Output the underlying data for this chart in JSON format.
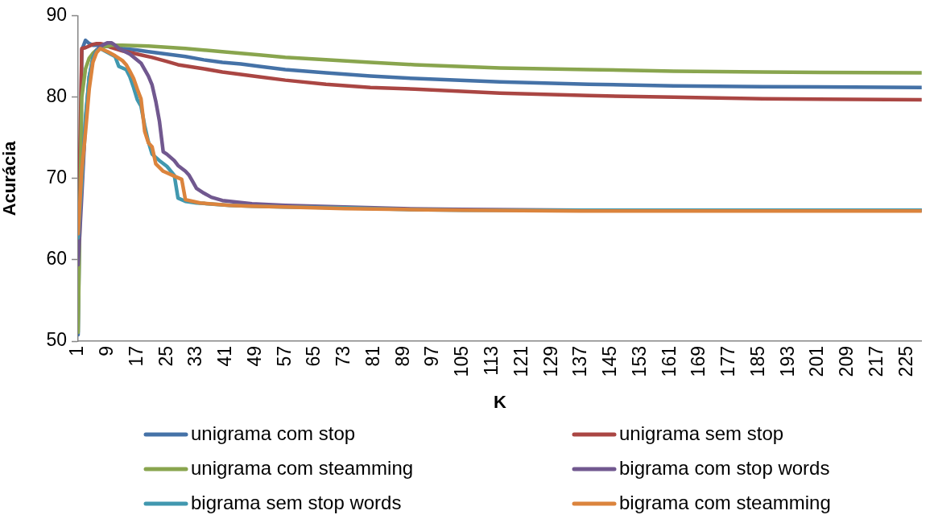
{
  "chart_data": {
    "type": "line",
    "xlabel": "K",
    "ylabel": "Acurácia",
    "xlim": [
      1,
      229
    ],
    "xticks": [
      1,
      9,
      17,
      25,
      33,
      41,
      49,
      57,
      65,
      73,
      81,
      89,
      97,
      105,
      113,
      121,
      129,
      137,
      145,
      153,
      161,
      169,
      177,
      185,
      193,
      201,
      209,
      217,
      225
    ],
    "ylim": [
      50,
      90
    ],
    "yticks": [
      50,
      60,
      70,
      80,
      90
    ],
    "grid": false,
    "legend": "bottom",
    "marker": "none",
    "series": [
      {
        "name": "unigrama com stop",
        "color": "#4572a7",
        "x": [
          1,
          2,
          3,
          4,
          5,
          6,
          8,
          10,
          13,
          17,
          20,
          25,
          30,
          35,
          40,
          45,
          50,
          57,
          68,
          80,
          92,
          115,
          139,
          162,
          186,
          229
        ],
        "values": [
          50.8,
          85.8,
          87.0,
          86.6,
          86.4,
          86.4,
          86.3,
          86.2,
          86.0,
          85.8,
          85.6,
          85.3,
          85.0,
          84.6,
          84.3,
          84.1,
          83.8,
          83.4,
          83.0,
          82.6,
          82.3,
          81.9,
          81.6,
          81.4,
          81.3,
          81.2
        ]
      },
      {
        "name": "unigrama sem stop",
        "color": "#aa4643",
        "x": [
          1,
          2,
          3,
          4,
          5,
          6,
          7,
          8,
          9,
          10,
          13,
          17,
          21,
          25,
          28,
          35,
          40,
          45,
          50,
          57,
          68,
          80,
          92,
          115,
          139,
          162,
          186,
          229
        ],
        "values": [
          61.0,
          86.0,
          86.1,
          86.3,
          86.5,
          86.6,
          86.6,
          86.5,
          86.3,
          86.1,
          85.7,
          85.3,
          84.9,
          84.4,
          84.0,
          83.5,
          83.1,
          82.8,
          82.5,
          82.1,
          81.6,
          81.2,
          81.0,
          80.5,
          80.2,
          80.0,
          79.8,
          79.7
        ]
      },
      {
        "name": "unigrama com steamming",
        "color": "#89a54e",
        "x": [
          1,
          2,
          3,
          4,
          5,
          6,
          7,
          8,
          9,
          10,
          13,
          20,
          30,
          40,
          45,
          50,
          57,
          68,
          80,
          92,
          115,
          139,
          162,
          186,
          229
        ],
        "values": [
          51.1,
          80.0,
          83.5,
          84.8,
          85.4,
          85.8,
          86.0,
          86.2,
          86.3,
          86.4,
          86.4,
          86.3,
          86.0,
          85.6,
          85.4,
          85.2,
          84.9,
          84.6,
          84.3,
          84.0,
          83.6,
          83.4,
          83.2,
          83.1,
          83.0
        ]
      },
      {
        "name": "bigrama com stop words",
        "color": "#71588f",
        "x": [
          1,
          2,
          3,
          4,
          5,
          6,
          7,
          8,
          9,
          10,
          11,
          12,
          15,
          18,
          20,
          21,
          22,
          23,
          24,
          25,
          26,
          27,
          28,
          30,
          31,
          32,
          33,
          35,
          37,
          40,
          42,
          48,
          57,
          73,
          89,
          105,
          137,
          229
        ],
        "values": [
          59.4,
          68.0,
          77.0,
          82.5,
          84.8,
          85.8,
          86.2,
          86.5,
          86.7,
          86.7,
          86.4,
          86.0,
          85.3,
          84.2,
          82.6,
          81.5,
          79.5,
          77.0,
          73.3,
          73.0,
          72.6,
          72.2,
          71.6,
          70.9,
          70.4,
          69.6,
          68.8,
          68.2,
          67.7,
          67.3,
          67.2,
          66.9,
          66.7,
          66.5,
          66.3,
          66.2,
          66.1,
          66.1
        ]
      },
      {
        "name": "bigrama sem stop words",
        "color": "#4198af",
        "x": [
          1,
          2,
          3,
          4,
          5,
          6,
          7,
          9,
          11,
          12,
          14,
          15,
          16,
          17,
          18,
          19,
          20,
          21,
          23,
          25,
          27,
          28,
          30,
          33,
          42,
          48,
          57,
          73,
          89,
          105,
          137,
          229
        ],
        "values": [
          62.7,
          69.5,
          77.5,
          82.5,
          84.8,
          85.7,
          86.0,
          85.5,
          85.0,
          83.8,
          83.4,
          82.5,
          81.2,
          79.7,
          78.9,
          76.5,
          74.5,
          73.0,
          72.2,
          71.5,
          70.4,
          67.6,
          67.2,
          67.0,
          66.7,
          66.6,
          66.5,
          66.4,
          66.2,
          66.1,
          66.1,
          66.1
        ]
      },
      {
        "name": "bigrama com steamming",
        "color": "#db843d",
        "x": [
          1,
          2,
          3,
          4,
          5,
          6,
          7,
          9,
          11,
          13,
          14,
          15,
          16,
          17,
          18,
          19,
          20,
          21,
          22,
          24,
          27,
          29,
          30,
          32,
          34,
          42,
          48,
          57,
          73,
          89,
          105,
          137,
          229
        ],
        "values": [
          63.2,
          71.0,
          75.7,
          81.0,
          84.3,
          85.5,
          86.0,
          85.6,
          85.1,
          84.5,
          84.0,
          83.2,
          82.3,
          81.0,
          79.8,
          75.8,
          74.4,
          73.9,
          71.8,
          70.9,
          70.3,
          69.9,
          67.4,
          67.2,
          67.0,
          66.7,
          66.6,
          66.5,
          66.3,
          66.2,
          66.1,
          66.0,
          66.0
        ]
      }
    ]
  }
}
